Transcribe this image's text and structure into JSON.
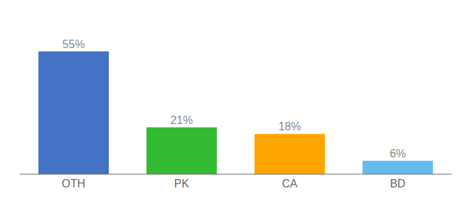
{
  "chart_data": {
    "type": "bar",
    "categories": [
      "OTH",
      "PK",
      "CA",
      "BD"
    ],
    "values": [
      55,
      21,
      18,
      6
    ],
    "value_labels": [
      "55%",
      "21%",
      "18%",
      "6%"
    ],
    "colors": [
      "#4472C4",
      "#33BB33",
      "#FFA500",
      "#66BBEE"
    ],
    "ylim": [
      0,
      68
    ],
    "data_labels": true,
    "tick_labels": "x",
    "grid": false
  }
}
